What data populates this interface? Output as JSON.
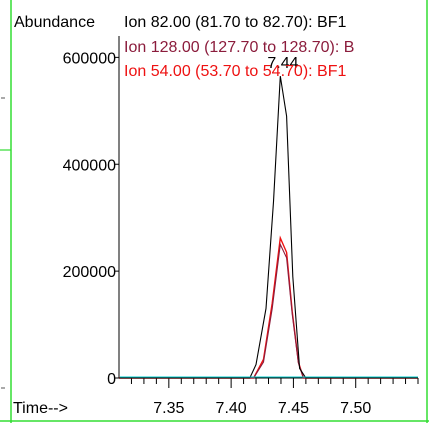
{
  "chart_data": {
    "type": "line",
    "ylabel": "Abundance",
    "xlabel": "Time-->",
    "x_ticks": [
      "7.35",
      "7.40",
      "7.45",
      "7.50"
    ],
    "x_tick_values": [
      7.35,
      7.4,
      7.45,
      7.5
    ],
    "y_ticks": [
      "0",
      "200000",
      "400000",
      "600000"
    ],
    "y_tick_values": [
      0,
      200000,
      400000,
      600000
    ],
    "xlim": [
      7.31,
      7.55
    ],
    "ylim": [
      0,
      640000
    ],
    "peak_label": "7.44",
    "peak_x": 7.44,
    "peak_y": 565000,
    "series": [
      {
        "name": "Ion  82.00 (81.70 to 82.70): BF1",
        "color": "#000000",
        "points": [
          [
            7.31,
            0
          ],
          [
            7.415,
            0
          ],
          [
            7.42,
            25000
          ],
          [
            7.428,
            130000
          ],
          [
            7.434,
            330000
          ],
          [
            7.4395,
            565000
          ],
          [
            7.4445,
            490000
          ],
          [
            7.4495,
            190000
          ],
          [
            7.455,
            18000
          ],
          [
            7.46,
            0
          ],
          [
            7.55,
            0
          ]
        ]
      },
      {
        "name": "Ion 128.00 (127.70 to 128.70): B",
        "color": "#8b1c3c",
        "points": [
          [
            7.31,
            0
          ],
          [
            7.418,
            0
          ],
          [
            7.426,
            30000
          ],
          [
            7.433,
            130000
          ],
          [
            7.4395,
            250000
          ],
          [
            7.4445,
            225000
          ],
          [
            7.449,
            120000
          ],
          [
            7.454,
            28000
          ],
          [
            7.458,
            0
          ],
          [
            7.55,
            0
          ]
        ]
      },
      {
        "name": "Ion  54.00 (53.70 to 54.70): BF1",
        "color": "#ee1111",
        "points": [
          [
            7.31,
            0
          ],
          [
            7.418,
            0
          ],
          [
            7.426,
            35000
          ],
          [
            7.433,
            140000
          ],
          [
            7.4395,
            262000
          ],
          [
            7.4445,
            235000
          ],
          [
            7.449,
            125000
          ],
          [
            7.454,
            30000
          ],
          [
            7.458,
            0
          ],
          [
            7.55,
            0
          ]
        ]
      }
    ],
    "baseline_color": "#00cccc",
    "border_color": "#33dd33"
  }
}
